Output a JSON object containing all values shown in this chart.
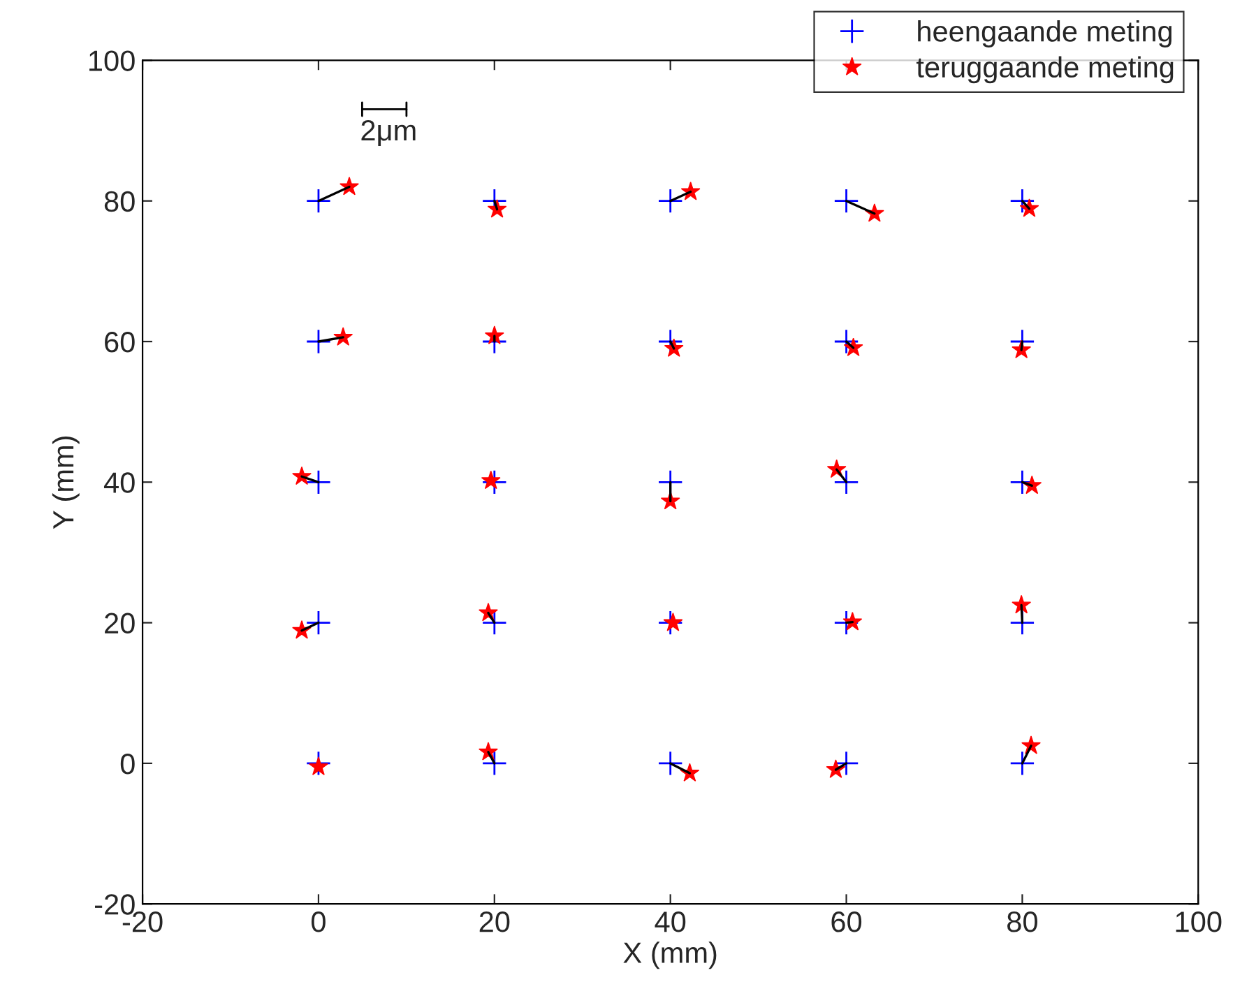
{
  "chart_data": {
    "type": "scatter",
    "xlabel": "X (mm)",
    "ylabel": "Y (mm)",
    "xlim": [
      -20,
      100
    ],
    "ylim": [
      -20,
      100
    ],
    "xticks": [
      -20,
      0,
      20,
      40,
      60,
      80,
      100
    ],
    "yticks": [
      -20,
      0,
      20,
      40,
      60,
      80,
      100
    ],
    "grid": false,
    "legend": "top right",
    "annotations": [
      "2μm"
    ],
    "series": [
      {
        "name": "heengaande meting",
        "color": "#0000ff",
        "marker": "cross",
        "x": [
          0,
          20,
          40,
          60,
          80,
          0,
          20,
          40,
          60,
          80,
          0,
          20,
          40,
          60,
          80,
          0,
          20,
          40,
          60,
          80,
          0,
          20,
          40,
          60,
          80
        ],
        "values": [
          80,
          80,
          80,
          80,
          80,
          60,
          60,
          60,
          60,
          60,
          40,
          40,
          40,
          40,
          40,
          20,
          20,
          20,
          20,
          20,
          0,
          0,
          0,
          0,
          0
        ]
      },
      {
        "name": "teruggaande meting",
        "color": "#ff0000",
        "marker": "star",
        "x": [
          3.5,
          20.3,
          42.3,
          63.2,
          80.8,
          2.8,
          20,
          40.4,
          60.8,
          79.9,
          -1.9,
          19.6,
          40,
          58.9,
          81.1,
          -1.9,
          19.3,
          40.3,
          60.7,
          79.9,
          0,
          19.3,
          42.2,
          58.8,
          81
        ],
        "values": [
          82,
          78.8,
          81.3,
          78.2,
          78.9,
          60.6,
          60.8,
          59,
          59.1,
          58.8,
          40.8,
          40.2,
          37.3,
          41.8,
          39.5,
          18.9,
          21.4,
          20,
          20.1,
          22.5,
          -0.5,
          1.6,
          -1.4,
          -0.9,
          2.5
        ]
      },
      {
        "type": "line",
        "color": "#000000",
        "marker": "none",
        "line_style": "solid",
        "x": [
          0,
          3.5
        ],
        "values": [
          80,
          82
        ]
      },
      {
        "type": "line",
        "color": "#000000",
        "marker": "none",
        "line_style": "solid",
        "x": [
          20,
          20.3
        ],
        "values": [
          80,
          78.8
        ]
      },
      {
        "type": "line",
        "color": "#000000",
        "marker": "none",
        "line_style": "solid",
        "x": [
          40,
          42.3
        ],
        "values": [
          80,
          81.3
        ]
      },
      {
        "type": "line",
        "color": "#000000",
        "marker": "none",
        "line_style": "solid",
        "x": [
          60,
          63.2
        ],
        "values": [
          80,
          78.2
        ]
      },
      {
        "type": "line",
        "color": "#000000",
        "marker": "none",
        "line_style": "solid",
        "x": [
          80,
          80.8
        ],
        "values": [
          80,
          78.9
        ]
      },
      {
        "type": "line",
        "color": "#000000",
        "marker": "none",
        "line_style": "solid",
        "x": [
          0,
          2.8
        ],
        "values": [
          60,
          60.6
        ]
      },
      {
        "type": "line",
        "color": "#000000",
        "marker": "none",
        "line_style": "solid",
        "x": [
          20,
          20
        ],
        "values": [
          60,
          60.8
        ]
      },
      {
        "type": "line",
        "color": "#000000",
        "marker": "none",
        "line_style": "solid",
        "x": [
          40,
          40.4
        ],
        "values": [
          60,
          59
        ]
      },
      {
        "type": "line",
        "color": "#000000",
        "marker": "none",
        "line_style": "solid",
        "x": [
          60,
          60.8
        ],
        "values": [
          60,
          59.1
        ]
      },
      {
        "type": "line",
        "color": "#000000",
        "marker": "none",
        "line_style": "solid",
        "x": [
          80,
          79.9
        ],
        "values": [
          60,
          58.8
        ]
      },
      {
        "type": "line",
        "color": "#000000",
        "marker": "none",
        "line_style": "solid",
        "x": [
          0,
          -1.9
        ],
        "values": [
          40,
          40.8
        ]
      },
      {
        "type": "line",
        "color": "#000000",
        "marker": "none",
        "line_style": "solid",
        "x": [
          40,
          40
        ],
        "values": [
          40,
          37.3
        ]
      },
      {
        "type": "line",
        "color": "#000000",
        "marker": "none",
        "line_style": "solid",
        "x": [
          60,
          58.9
        ],
        "values": [
          40,
          41.8
        ]
      },
      {
        "type": "line",
        "color": "#000000",
        "marker": "none",
        "line_style": "solid",
        "x": [
          80,
          81.1
        ],
        "values": [
          40,
          39.5
        ]
      },
      {
        "type": "line",
        "color": "#000000",
        "marker": "none",
        "line_style": "solid",
        "x": [
          0,
          -1.9
        ],
        "values": [
          20,
          18.9
        ]
      },
      {
        "type": "line",
        "color": "#000000",
        "marker": "none",
        "line_style": "solid",
        "x": [
          20,
          19.3
        ],
        "values": [
          20,
          21.4
        ]
      },
      {
        "type": "line",
        "color": "#000000",
        "marker": "none",
        "line_style": "solid",
        "x": [
          60,
          60.7
        ],
        "values": [
          20,
          20.1
        ]
      },
      {
        "type": "line",
        "color": "#000000",
        "marker": "none",
        "line_style": "solid",
        "x": [
          80,
          79.9
        ],
        "values": [
          20,
          22.5
        ]
      },
      {
        "type": "line",
        "color": "#000000",
        "marker": "none",
        "line_style": "solid",
        "x": [
          20,
          19.3
        ],
        "values": [
          0,
          1.6
        ]
      },
      {
        "type": "line",
        "color": "#000000",
        "marker": "none",
        "line_style": "solid",
        "x": [
          40,
          42.2
        ],
        "values": [
          0,
          -1.4
        ]
      },
      {
        "type": "line",
        "color": "#000000",
        "marker": "none",
        "line_style": "solid",
        "x": [
          60,
          58.8
        ],
        "values": [
          0,
          -0.9
        ]
      },
      {
        "type": "line",
        "color": "#000000",
        "marker": "none",
        "line_style": "solid",
        "x": [
          80,
          81
        ],
        "values": [
          0,
          2.5
        ]
      }
    ]
  }
}
